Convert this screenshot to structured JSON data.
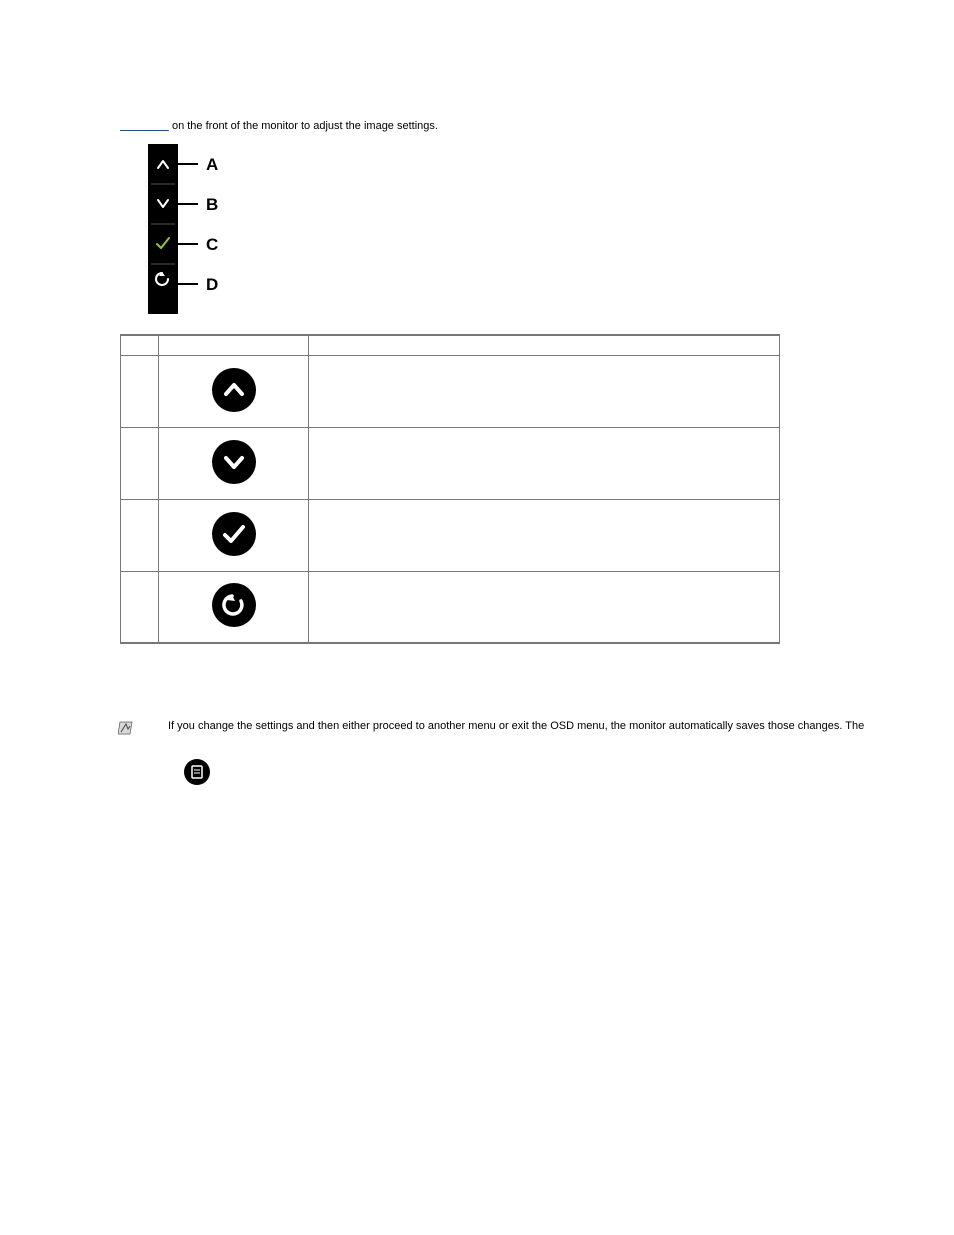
{
  "intro": {
    "link_placeholder": "",
    "after_link": " on the front of the monitor to adjust the image settings."
  },
  "panel_labels": [
    "A",
    "B",
    "C",
    "D"
  ],
  "table": {
    "headers": [
      "",
      "",
      ""
    ],
    "rows": [
      {
        "letter": "",
        "icon_type": "up",
        "icon_color": "#ffffff",
        "description": ""
      },
      {
        "letter": "",
        "icon_type": "down",
        "icon_color": "#ffffff",
        "description": ""
      },
      {
        "letter": "",
        "icon_type": "check",
        "icon_color": "#ffffff",
        "description": ""
      },
      {
        "letter": "",
        "icon_type": "back",
        "icon_color": "#ffffff",
        "description": ""
      }
    ]
  },
  "note": {
    "text": "If you change the settings and then either proceed to another menu or exit the OSD menu, the monitor automatically saves those changes. The"
  },
  "step1": {
    "text_before": "",
    "icon_type": "menu",
    "text_after": ""
  },
  "colors": {
    "icon_bg": "#000000",
    "green": "#8cc63f",
    "white": "#ffffff",
    "border": "#777777",
    "link": "#0055cc"
  }
}
